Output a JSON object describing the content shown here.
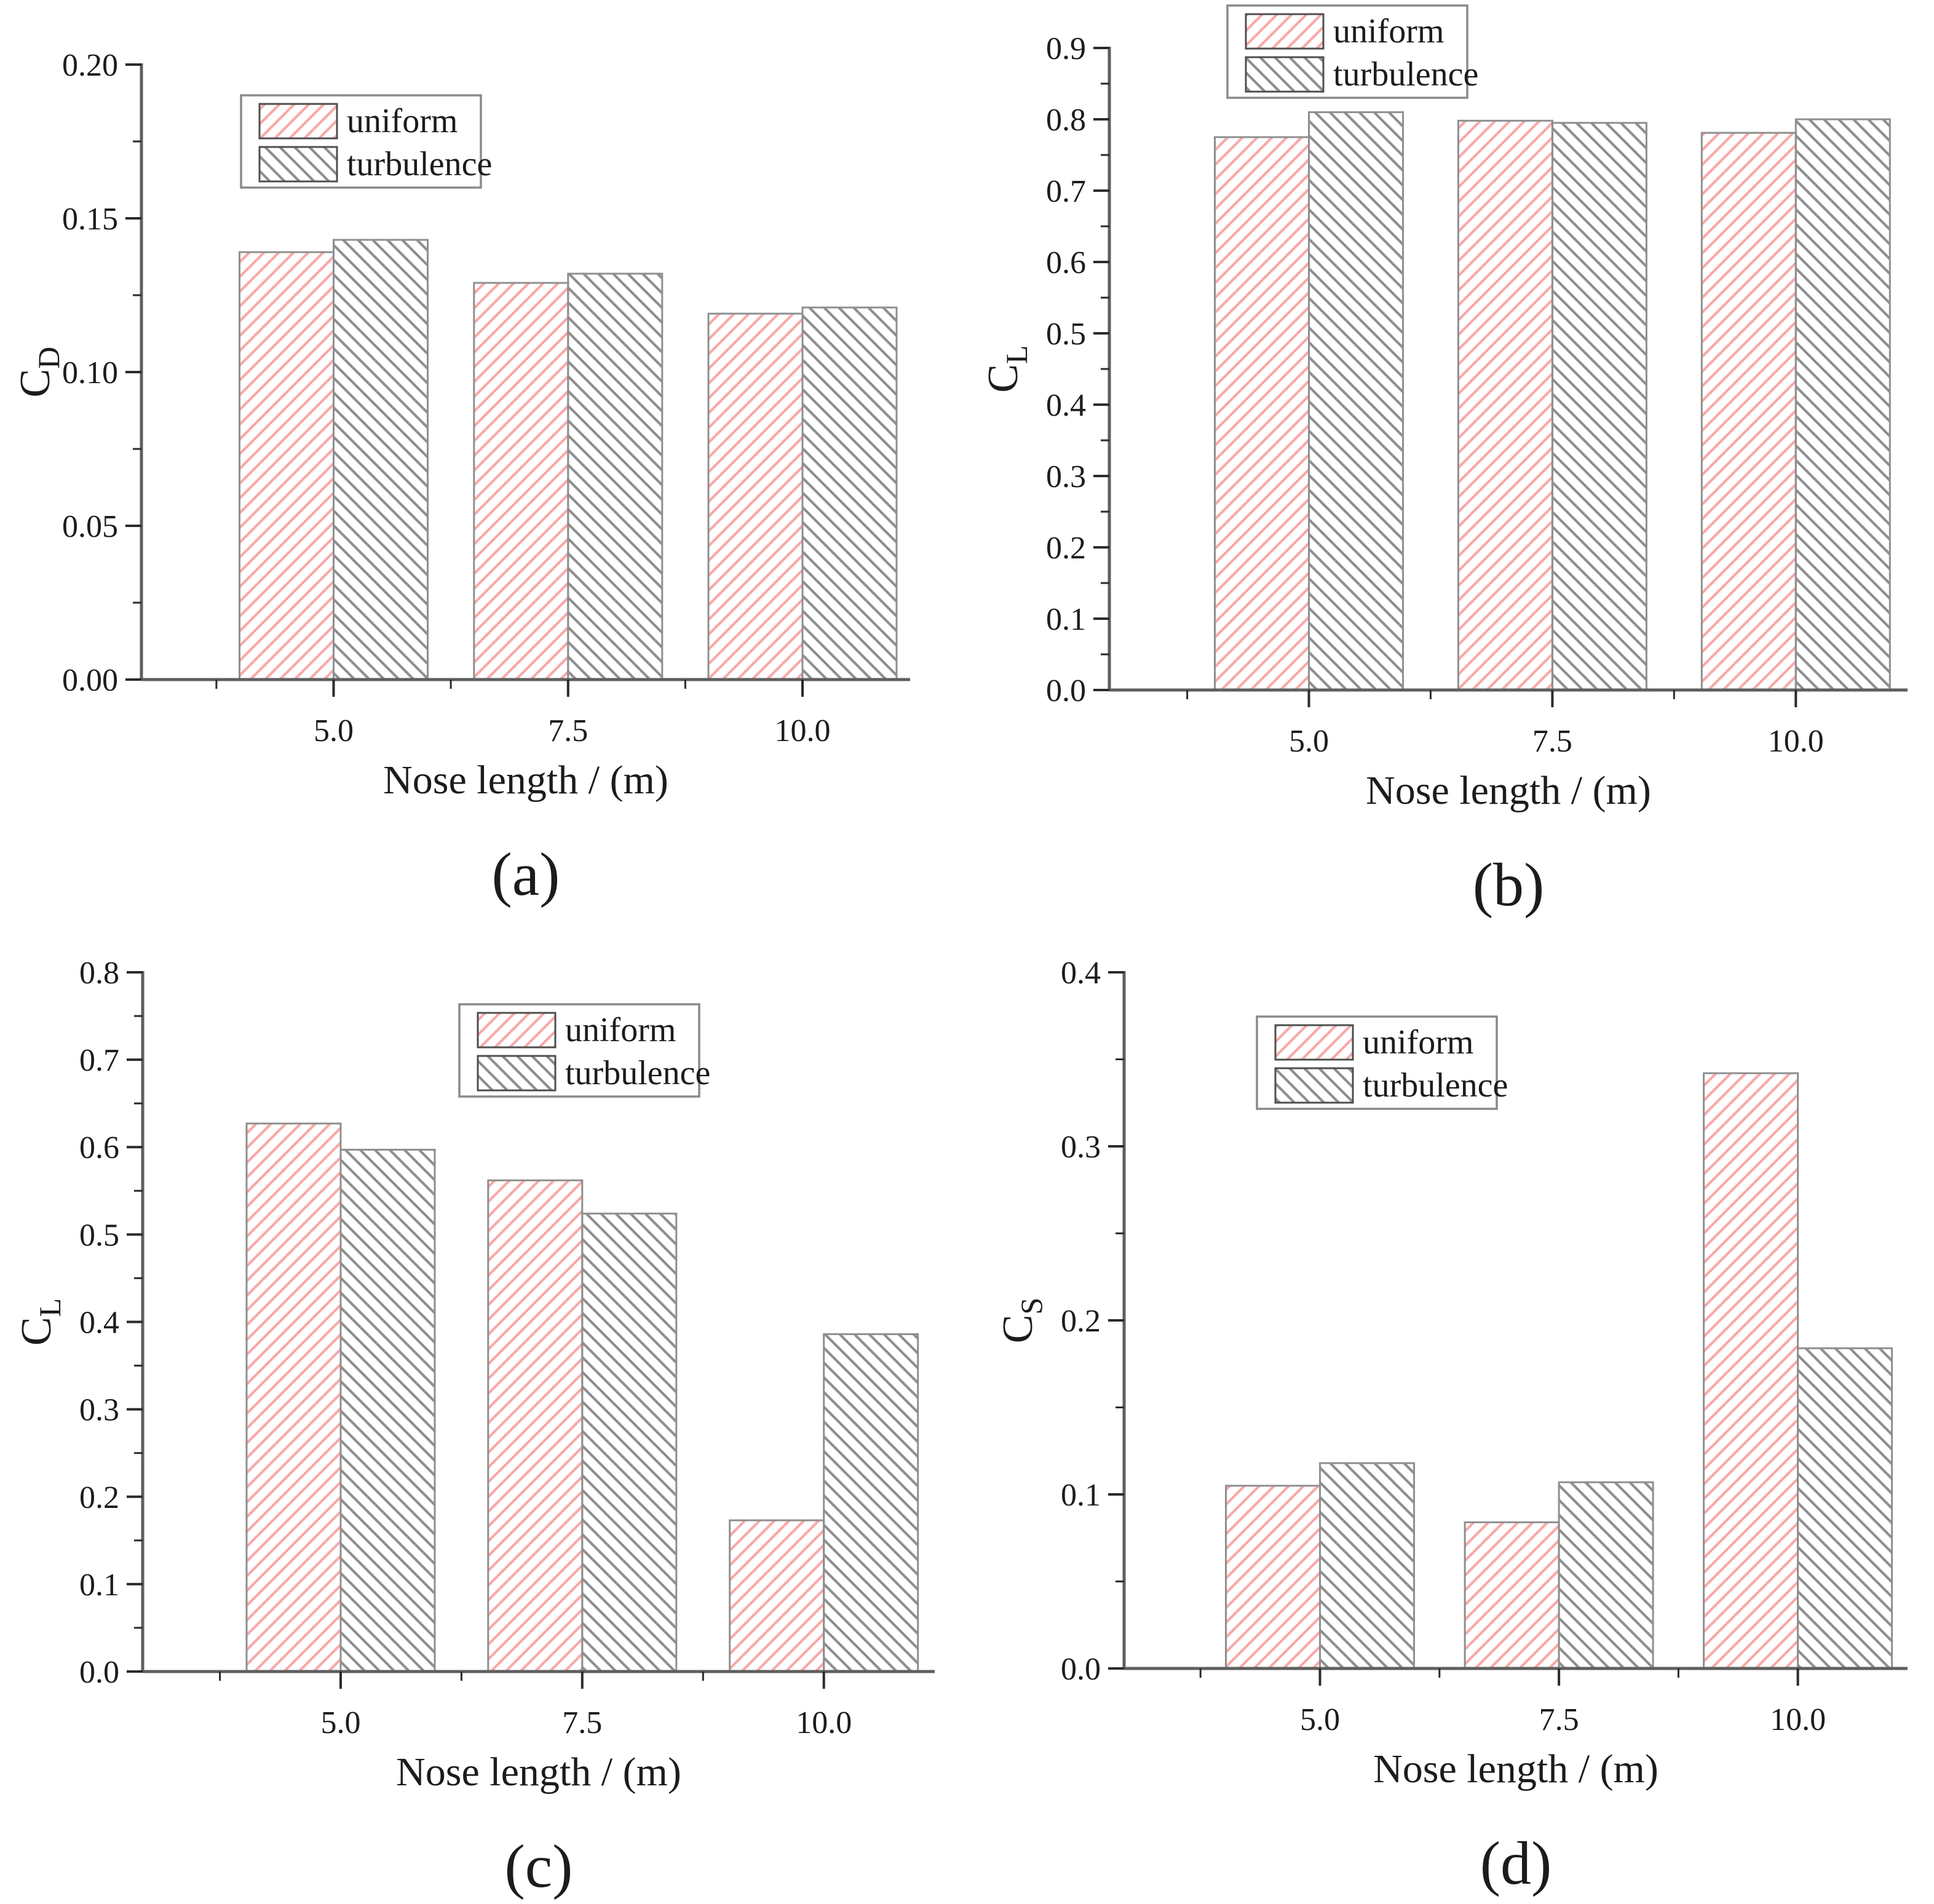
{
  "figure": {
    "background": "#ffffff",
    "text_color": "#1c1c1c",
    "axis_line_color": "#5f5f5f",
    "tick_color": "#2b2b2b",
    "bar_border_color": "#8f8f8f",
    "legend_border_color": "#8a8a8a",
    "legend_swatch_border_color": "#4f4f4f",
    "series_styles": {
      "uniform": {
        "hatch_color": "#f9a8a8",
        "hatch_direction": "up"
      },
      "turbulence": {
        "hatch_color": "#8f8f8f",
        "hatch_direction": "down"
      }
    },
    "legend_labels": [
      "uniform",
      "turbulence"
    ]
  },
  "chart_data": [
    {
      "id": "a",
      "type": "bar",
      "caption": "(a)",
      "xlabel": "Nose length / (m)",
      "ylabel_base": "C",
      "ylabel_sub": "D",
      "categories": [
        "5.0",
        "7.5",
        "10.0"
      ],
      "series": [
        {
          "name": "uniform",
          "values": [
            0.139,
            0.129,
            0.119
          ]
        },
        {
          "name": "turbulence",
          "values": [
            0.143,
            0.132,
            0.121
          ]
        }
      ],
      "ylim": [
        0,
        0.2
      ],
      "ytick_step": 0.05,
      "yminor_step": 0.025,
      "ytick_decimals": 2,
      "grid": false,
      "legend_position": "upper-left-inside",
      "legend_xy": [
        392,
        155
      ]
    },
    {
      "id": "b",
      "type": "bar",
      "caption": "(b)",
      "xlabel": "Nose length / (m)",
      "ylabel_base": "C",
      "ylabel_sub": "L",
      "categories": [
        "5.0",
        "7.5",
        "10.0"
      ],
      "series": [
        {
          "name": "uniform",
          "values": [
            0.775,
            0.798,
            0.781
          ]
        },
        {
          "name": "turbulence",
          "values": [
            0.81,
            0.795,
            0.8
          ]
        }
      ],
      "ylim": [
        0,
        0.9
      ],
      "ytick_step": 0.1,
      "yminor_step": 0.05,
      "ytick_decimals": 1,
      "grid": false,
      "legend_position": "top-inside",
      "legend_xy": [
        424,
        9
      ]
    },
    {
      "id": "c",
      "type": "bar",
      "caption": "(c)",
      "xlabel": "Nose length / (m)",
      "ylabel_base": "C",
      "ylabel_sub": "L",
      "categories": [
        "5.0",
        "7.5",
        "10.0"
      ],
      "series": [
        {
          "name": "uniform",
          "values": [
            0.627,
            0.562,
            0.173
          ]
        },
        {
          "name": "turbulence",
          "values": [
            0.597,
            0.524,
            0.386
          ]
        }
      ],
      "ylim": [
        0,
        0.8
      ],
      "ytick_step": 0.1,
      "yminor_step": 0.05,
      "ytick_decimals": 1,
      "grid": false,
      "legend_position": "upper-center-inside",
      "legend_xy": [
        747,
        85
      ]
    },
    {
      "id": "d",
      "type": "bar",
      "caption": "(d)",
      "xlabel": "Nose length / (m)",
      "ylabel_base": "C",
      "ylabel_sub": "S",
      "categories": [
        "5.0",
        "7.5",
        "10.0"
      ],
      "series": [
        {
          "name": "uniform",
          "values": [
            0.105,
            0.084,
            0.342
          ]
        },
        {
          "name": "turbulence",
          "values": [
            0.118,
            0.107,
            0.184
          ]
        }
      ],
      "ylim": [
        0,
        0.4
      ],
      "ytick_step": 0.1,
      "yminor_step": 0.05,
      "ytick_decimals": 1,
      "grid": false,
      "legend_position": "upper-left-inside",
      "legend_xy": [
        472,
        105
      ]
    }
  ]
}
